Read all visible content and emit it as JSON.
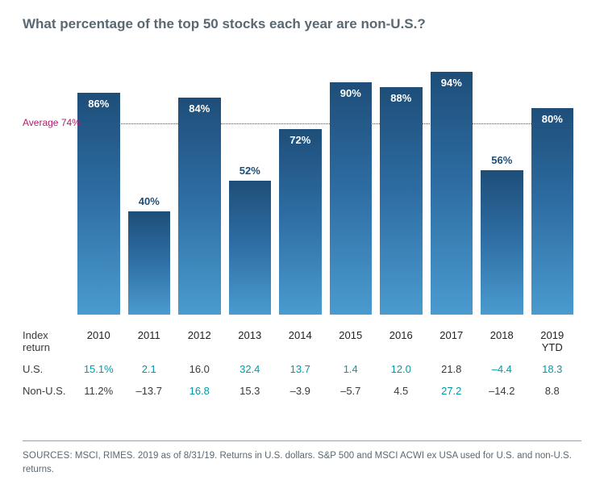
{
  "title": "What percentage of the top 50 stocks each year are non-U.S.?",
  "chart": {
    "type": "bar",
    "ylim": [
      0,
      100
    ],
    "bar_gradient_top": "#1e4e79",
    "bar_gradient_mid": "#2d6ca2",
    "bar_gradient_bottom": "#4a9bcf",
    "background_color": "#ffffff",
    "avg_label": "Average 74%",
    "avg_value": 74,
    "avg_color": "#b31b6f",
    "label_fontsize": 13,
    "title_fontsize": 17,
    "title_color": "#5a6872",
    "years": [
      "2010",
      "2011",
      "2012",
      "2013",
      "2014",
      "2015",
      "2016",
      "2017",
      "2018",
      "2019 YTD"
    ],
    "values": [
      86,
      40,
      84,
      52,
      72,
      90,
      88,
      94,
      56,
      80
    ],
    "label_inside_threshold": 60
  },
  "table": {
    "row_label_index": "Index return",
    "row_label_us": "U.S.",
    "row_label_nonus": "Non-U.S.",
    "highlight_color": "#009ca6",
    "text_color": "#3a3a3a",
    "us": [
      {
        "v": "15.1%",
        "hl": true
      },
      {
        "v": "2.1",
        "hl": true
      },
      {
        "v": "16.0",
        "hl": false
      },
      {
        "v": "32.4",
        "hl": true
      },
      {
        "v": "13.7",
        "hl": true
      },
      {
        "v": "1.4",
        "hl": true
      },
      {
        "v": "12.0",
        "hl": true
      },
      {
        "v": "21.8",
        "hl": false
      },
      {
        "v": "–4.4",
        "hl": true
      },
      {
        "v": "18.3",
        "hl": true
      }
    ],
    "nonus": [
      {
        "v": "11.2%",
        "hl": false
      },
      {
        "v": "–13.7",
        "hl": false
      },
      {
        "v": "16.8",
        "hl": true
      },
      {
        "v": "15.3",
        "hl": false
      },
      {
        "v": "–3.9",
        "hl": false
      },
      {
        "v": "–5.7",
        "hl": false
      },
      {
        "v": "4.5",
        "hl": false
      },
      {
        "v": "27.2",
        "hl": true
      },
      {
        "v": "–14.2",
        "hl": false
      },
      {
        "v": "8.8",
        "hl": false
      }
    ]
  },
  "footer": {
    "sources_label": "SOURCES",
    "text": ": MSCI, RIMES. 2019 as of 8/31/19. Returns in U.S. dollars. S&P 500 and MSCI ACWI ex USA used for U.S. and non-U.S. returns."
  }
}
